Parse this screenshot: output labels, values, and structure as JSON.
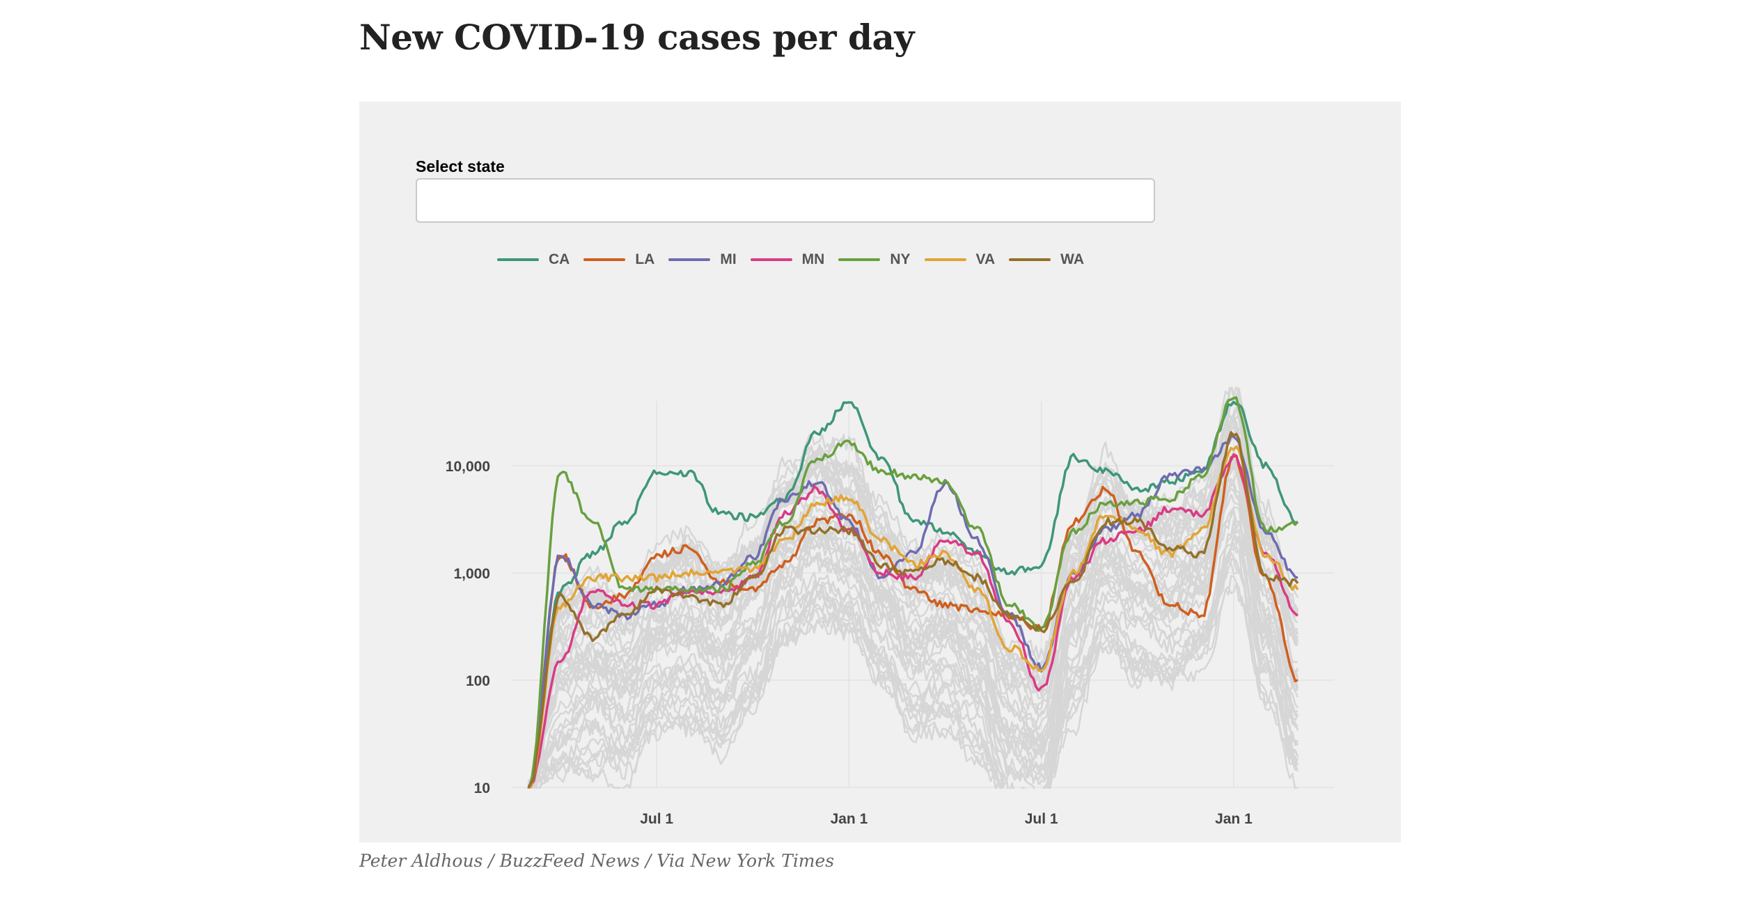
{
  "page": {
    "title": "New COVID-19 cases per day",
    "credit": "Peter Aldhous / BuzzFeed News / Via New York Times"
  },
  "controls": {
    "select_label": "Select state",
    "select_value": ""
  },
  "chart_data": {
    "type": "line",
    "title": "New COVID-19 cases per day",
    "xlabel": "",
    "ylabel": "",
    "y_scale": "log",
    "ylim": [
      10,
      45000
    ],
    "grid": true,
    "legend_position": "top-left",
    "x_ticks": [
      "Jul 1",
      "Jan 1",
      "Jul 1",
      "Jan 1"
    ],
    "y_ticks": [
      "10",
      "100",
      "1,000",
      "10,000"
    ],
    "y_tick_values": [
      10,
      100,
      1000,
      10000
    ],
    "x": [
      "2020-03-01",
      "2020-04-01",
      "2020-05-01",
      "2020-06-01",
      "2020-07-01",
      "2020-08-01",
      "2020-09-01",
      "2020-10-01",
      "2020-11-01",
      "2020-12-01",
      "2021-01-01",
      "2021-02-01",
      "2021-03-01",
      "2021-04-01",
      "2021-05-01",
      "2021-06-01",
      "2021-07-01",
      "2021-08-01",
      "2021-09-01",
      "2021-10-01",
      "2021-11-01",
      "2021-12-01",
      "2022-01-01",
      "2022-02-01",
      "2022-03-01"
    ],
    "background_series_count": 43,
    "background_color": "#d6d6d6",
    "series": [
      {
        "name": "CA",
        "color": "#3f9678",
        "values": [
          10,
          700,
          1500,
          3000,
          8500,
          8500,
          3500,
          3300,
          5000,
          20000,
          40000,
          12000,
          3000,
          2500,
          1500,
          1000,
          1200,
          12000,
          9000,
          6000,
          7000,
          9000,
          40000,
          10000,
          3000
        ]
      },
      {
        "name": "LA",
        "color": "#cf5f1f",
        "values": [
          10,
          1500,
          500,
          600,
          1500,
          1700,
          800,
          700,
          1200,
          3000,
          3500,
          1500,
          700,
          500,
          450,
          400,
          300,
          3000,
          6000,
          1500,
          500,
          400,
          12000,
          900,
          100
        ]
      },
      {
        "name": "MI",
        "color": "#6e6cb0",
        "values": [
          10,
          1500,
          500,
          400,
          500,
          700,
          800,
          1400,
          5000,
          7000,
          3000,
          900,
          1500,
          7000,
          2000,
          400,
          130,
          1000,
          2500,
          3500,
          8000,
          9000,
          18000,
          2500,
          900
        ]
      },
      {
        "name": "MN",
        "color": "#d93b85",
        "values": [
          10,
          150,
          700,
          500,
          500,
          700,
          650,
          900,
          3500,
          6000,
          2500,
          1000,
          900,
          2000,
          1500,
          350,
          80,
          900,
          2000,
          2500,
          4000,
          3500,
          12000,
          1500,
          400
        ]
      },
      {
        "name": "NY",
        "color": "#68a040",
        "values": [
          10,
          9000,
          3000,
          700,
          700,
          700,
          700,
          1200,
          3000,
          12000,
          16000,
          9000,
          8000,
          7000,
          2500,
          500,
          300,
          2500,
          4500,
          4500,
          5000,
          8000,
          45000,
          2500,
          3000
        ]
      },
      {
        "name": "VA",
        "color": "#e1a435",
        "values": [
          10,
          500,
          900,
          900,
          900,
          1000,
          1000,
          1100,
          2000,
          4500,
          5000,
          2000,
          1200,
          1500,
          700,
          200,
          130,
          1000,
          3500,
          2500,
          1500,
          2500,
          15000,
          1500,
          700
        ]
      },
      {
        "name": "WA",
        "color": "#95702a",
        "values": [
          10,
          600,
          250,
          400,
          700,
          600,
          500,
          900,
          2500,
          2500,
          2500,
          1200,
          1000,
          1300,
          900,
          400,
          300,
          800,
          3000,
          3000,
          1700,
          1500,
          20000,
          900,
          800
        ]
      }
    ]
  }
}
